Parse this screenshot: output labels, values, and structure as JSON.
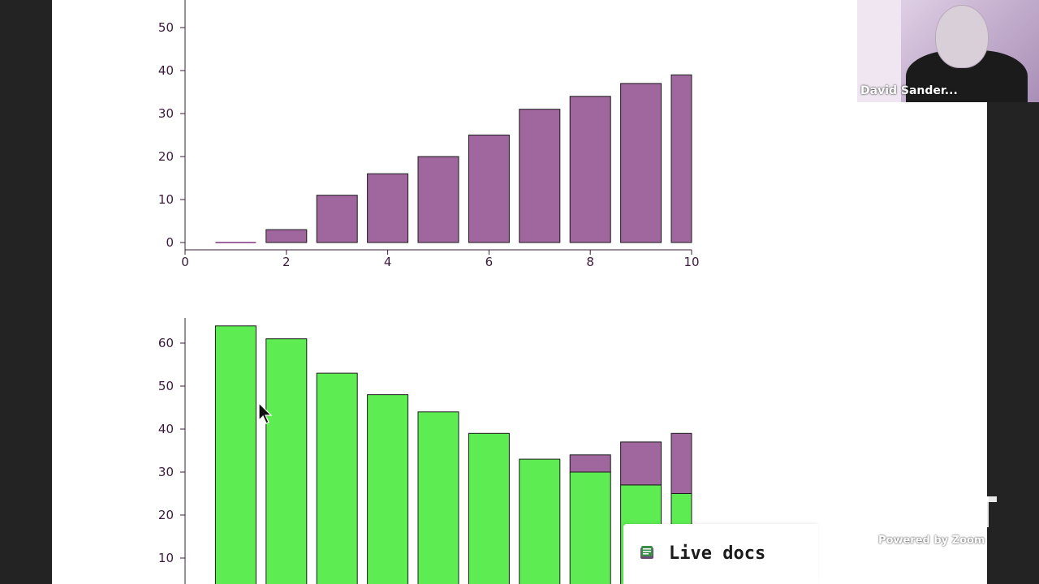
{
  "chart_data": [
    {
      "type": "bar",
      "x": [
        1,
        2,
        3,
        4,
        5,
        6,
        7,
        8,
        9,
        10
      ],
      "series": [
        {
          "values": [
            0,
            3,
            11,
            16,
            20,
            25,
            31,
            34,
            37,
            39
          ],
          "color": "#a0669e"
        }
      ],
      "xlim": [
        0,
        10
      ],
      "ylim": [
        -2,
        56
      ],
      "xticks": [
        "0",
        "2",
        "4",
        "6",
        "8",
        "10"
      ],
      "yticks": [
        "0",
        "10",
        "20",
        "30",
        "40",
        "50"
      ],
      "title": "",
      "xlabel": "",
      "ylabel": "",
      "grid": false
    },
    {
      "type": "bar",
      "stacked": true,
      "x": [
        1,
        2,
        3,
        4,
        5,
        6,
        7,
        8,
        9,
        10
      ],
      "series": [
        {
          "values": [
            64,
            61,
            53,
            48,
            44,
            39,
            33,
            30,
            27,
            25
          ],
          "color": "#5ded52"
        },
        {
          "values": [
            0,
            0,
            0,
            0,
            0,
            0,
            0,
            4,
            10,
            14
          ],
          "color": "#a0669e"
        }
      ],
      "xlim": [
        0,
        10
      ],
      "ylim": [
        0,
        68
      ],
      "yticks": [
        "10",
        "20",
        "30",
        "40",
        "50",
        "60"
      ],
      "title": "",
      "xlabel": "",
      "ylabel": "",
      "grid": false
    }
  ],
  "video": {
    "participant_name": "David Sander...",
    "powered_by": "Powered by Zoom"
  },
  "live_docs": {
    "label": "Live docs"
  },
  "colors": {
    "background": "#232323",
    "panel": "#ffffff",
    "purple_bar": "#a0669e",
    "green_bar": "#5ded52",
    "axis": "#3a1a3a"
  },
  "icons": {
    "cursor": "mouse-pointer-icon",
    "live_docs": "notes-icon"
  }
}
